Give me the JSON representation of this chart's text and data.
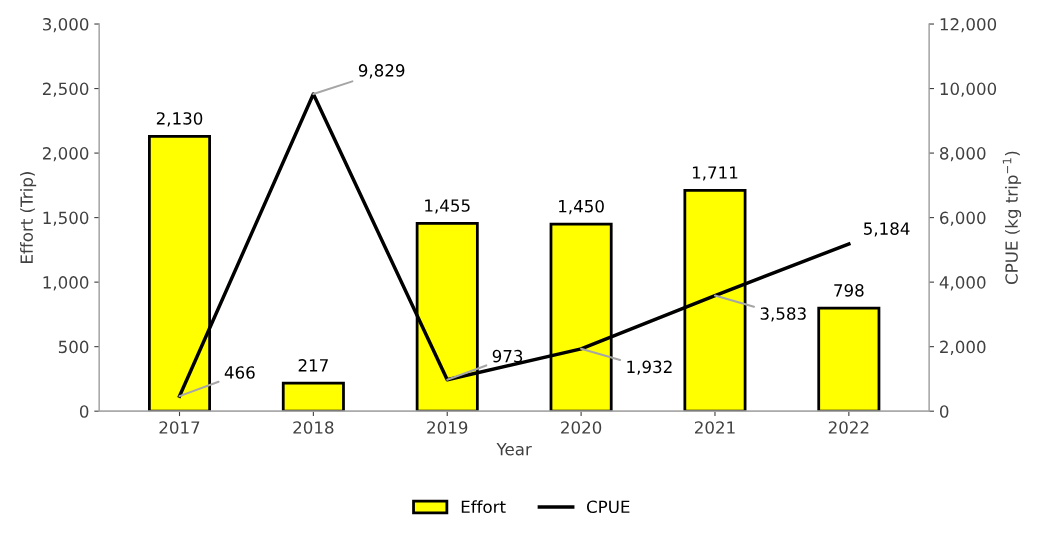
{
  "chart_data": {
    "type": "bar",
    "xlabel": "Year",
    "ylabel": "Effort (Trip)",
    "y2label": "CPUE (kg trip$^{−1}$)",
    "categories": [
      "2017",
      "2018",
      "2019",
      "2020",
      "2021",
      "2022"
    ],
    "series": [
      {
        "name": "Effort",
        "color": "#ffff00",
        "values": [
          2130,
          217,
          1455,
          1450,
          1711,
          798
        ],
        "value_labels": [
          "2,130",
          "217",
          "1,455",
          "1,450",
          "1,711",
          "798"
        ]
      },
      {
        "name": "CPUE",
        "type": "line",
        "axis": "y2",
        "color": "#000000",
        "values": [
          466,
          9829,
          973,
          1932,
          3583,
          5184
        ],
        "value_labels": [
          "466",
          "9,829",
          "973",
          "1,932",
          "3,583",
          "5,184"
        ]
      }
    ],
    "ylim": [
      0,
      3000
    ],
    "yticks": [
      {
        "value": 0,
        "label": "0"
      },
      {
        "value": 500,
        "label": "500"
      },
      {
        "value": 1000,
        "label": "1,000"
      },
      {
        "value": 1500,
        "label": "1,500"
      },
      {
        "value": 2000,
        "label": "2,000"
      },
      {
        "value": 2500,
        "label": "2,500"
      },
      {
        "value": 3000,
        "label": "3,000"
      }
    ],
    "y2lim": [
      0,
      12000
    ],
    "y2ticks": [
      {
        "value": 0,
        "label": "0"
      },
      {
        "value": 2000,
        "label": "2,000"
      },
      {
        "value": 4000,
        "label": "4,000"
      },
      {
        "value": 6000,
        "label": "6,000"
      },
      {
        "value": 8000,
        "label": "8,000"
      },
      {
        "value": 10000,
        "label": "10,000"
      },
      {
        "value": 12000,
        "label": "12,000"
      }
    ],
    "grid": false,
    "legend": "bottom",
    "marker": "none",
    "line_style": "solid"
  }
}
